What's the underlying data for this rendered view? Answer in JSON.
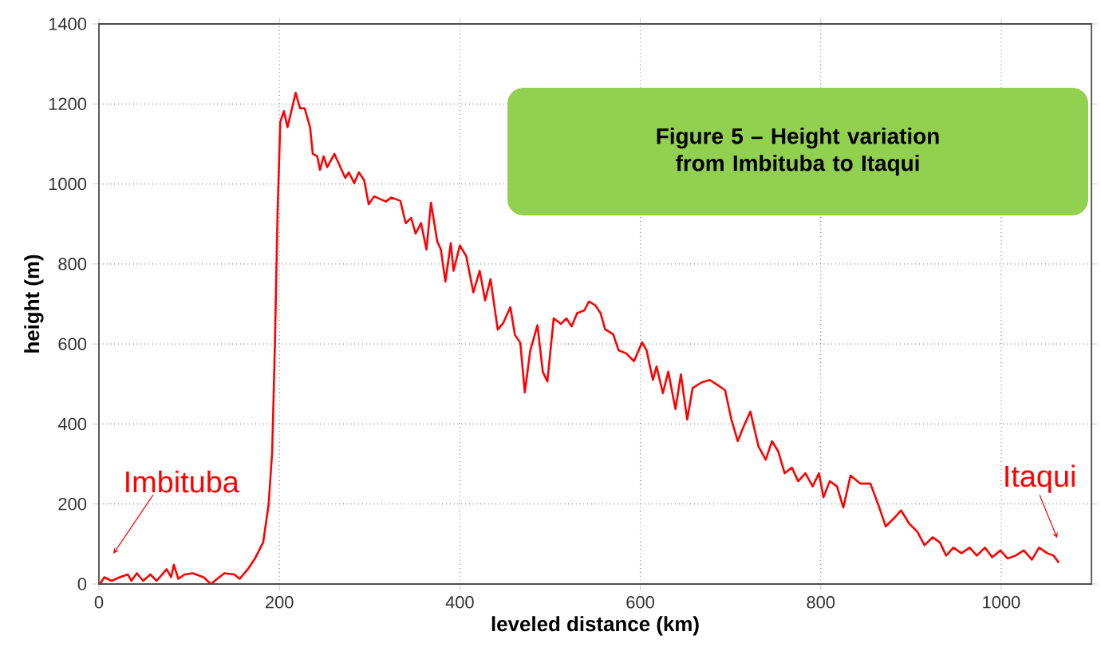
{
  "chart_data": {
    "type": "line",
    "title": "Figure 5 – Height variation from Imbituba to Itaqui",
    "xlabel": "leveled distance (km)",
    "ylabel": "height (m)",
    "xlim": [
      0,
      1100
    ],
    "ylim": [
      0,
      1400
    ],
    "xticks": [
      0,
      200,
      400,
      600,
      800,
      1000
    ],
    "yticks": [
      0,
      200,
      400,
      600,
      800,
      1000,
      1200,
      1400
    ],
    "grid": true,
    "marker": "none",
    "line_style": "solid",
    "annotations": [
      "Imbituba",
      "Itaqui"
    ],
    "series": [
      {
        "color": "#ff0000",
        "x": [
          1,
          6,
          14,
          23,
          32,
          36,
          42,
          49,
          57,
          64,
          75,
          80,
          83,
          88,
          95,
          104,
          116,
          124,
          130,
          139,
          150,
          156,
          165,
          173,
          182,
          188,
          192,
          195,
          198,
          201,
          205,
          209,
          214,
          218,
          223,
          228,
          234,
          237,
          242,
          245,
          249,
          253,
          261,
          265,
          273,
          277,
          283,
          288,
          294,
          299,
          305,
          312,
          318,
          324,
          334,
          340,
          346,
          351,
          357,
          363,
          368,
          375,
          379,
          384,
          390,
          393,
          400,
          407,
          415,
          422,
          428,
          434,
          442,
          448,
          456,
          461,
          467,
          472,
          478,
          486,
          492,
          497,
          504,
          512,
          518,
          524,
          530,
          538,
          543,
          550,
          556,
          561,
          570,
          576,
          584,
          593,
          602,
          607,
          614,
          618,
          625,
          631,
          639,
          645,
          652,
          658,
          668,
          677,
          686,
          694,
          701,
          708,
          714,
          722,
          731,
          739,
          746,
          753,
          760,
          768,
          775,
          783,
          791,
          798,
          803,
          810,
          818,
          825,
          833,
          844,
          855,
          864,
          872,
          881,
          889,
          898,
          907,
          915,
          924,
          932,
          939,
          947,
          956,
          965,
          973,
          982,
          990,
          999,
          1007,
          1016,
          1025,
          1034,
          1042,
          1051,
          1058,
          1064
        ],
        "values": [
          0,
          17,
          8,
          17,
          24,
          8,
          27,
          8,
          24,
          8,
          37,
          17,
          48,
          13,
          24,
          27,
          17,
          0,
          11,
          27,
          24,
          13,
          37,
          64,
          104,
          197,
          330,
          596,
          929,
          1155,
          1182,
          1142,
          1189,
          1228,
          1189,
          1189,
          1142,
          1075,
          1069,
          1035,
          1069,
          1042,
          1075,
          1055,
          1015,
          1029,
          1002,
          1029,
          1009,
          949,
          969,
          962,
          956,
          966,
          958,
          902,
          915,
          876,
          902,
          836,
          953,
          856,
          836,
          756,
          852,
          783,
          846,
          820,
          729,
          783,
          709,
          762,
          636,
          652,
          692,
          623,
          603,
          479,
          583,
          647,
          530,
          506,
          664,
          650,
          664,
          644,
          677,
          684,
          706,
          697,
          677,
          637,
          624,
          584,
          577,
          557,
          604,
          584,
          510,
          544,
          477,
          531,
          437,
          524,
          411,
          490,
          504,
          510,
          497,
          484,
          411,
          357,
          391,
          431,
          344,
          311,
          357,
          331,
          277,
          291,
          257,
          277,
          244,
          277,
          217,
          257,
          244,
          191,
          271,
          251,
          251,
          197,
          144,
          164,
          184,
          151,
          131,
          97,
          117,
          104,
          71,
          91,
          77,
          91,
          71,
          91,
          67,
          84,
          64,
          71,
          84,
          61,
          91,
          77,
          71,
          53
        ]
      }
    ]
  }
}
